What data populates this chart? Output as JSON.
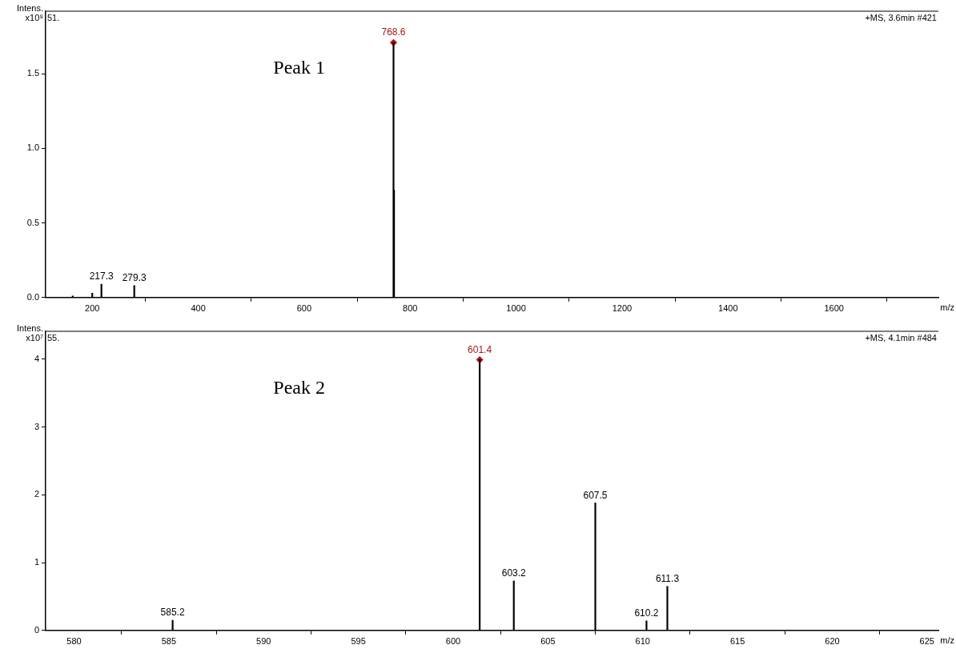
{
  "chart_data": [
    {
      "type": "bar",
      "ylabel": "Intens. x10⁹",
      "xlabel": "m/z",
      "annotations": [
        "51.",
        "+MS, 3.6min #421",
        "Peak 1",
        {
          "text": "217.3",
          "x": 217.3,
          "y": 0.09
        },
        {
          "text": "279.3",
          "x": 279.3,
          "y": 0.08
        },
        {
          "text": "768.6",
          "x": 768.6,
          "y": 1.71
        }
      ],
      "series": [
        {
          "color": "#000000",
          "x": [
            163,
            200,
            217.3,
            279.3,
            768.6,
            769.6
          ],
          "values": [
            0.01,
            0.03,
            0.09,
            0.08,
            1.71,
            0.72
          ]
        },
        {
          "type": "scatter",
          "color": "#d00000",
          "marker": "diamond",
          "x": [
            768.6
          ],
          "values": [
            1.71
          ]
        }
      ],
      "xlim": [
        112,
        1797
      ],
      "xticks": [
        200,
        400,
        600,
        800,
        1000,
        1200,
        1400,
        1600
      ],
      "ylim": [
        0,
        1.92
      ],
      "yticks": [
        {
          "value": 0,
          "label": "0.0"
        },
        {
          "value": 0.5,
          "label": "0.5"
        },
        {
          "value": 1,
          "label": "1.0"
        },
        {
          "value": 1.5,
          "label": "1.5"
        }
      ],
      "legend": false
    },
    {
      "type": "bar",
      "ylabel": "Intens. x10⁷",
      "xlabel": "m/z",
      "annotations": [
        "55.",
        "+MS, 4.1min #484",
        "Peak 2",
        {
          "text": "585.2",
          "x": 585.2,
          "y": 0.15
        },
        {
          "text": "601.4",
          "x": 601.4,
          "y": 3.99
        },
        {
          "text": "603.2",
          "x": 603.2,
          "y": 0.73
        },
        {
          "text": "607.5",
          "x": 607.5,
          "y": 1.88
        },
        {
          "text": "610.2",
          "x": 610.2,
          "y": 0.14
        },
        {
          "text": "611.3",
          "x": 611.3,
          "y": 0.65
        }
      ],
      "series": [
        {
          "color": "#000000",
          "x": [
            585.2,
            601.4,
            603.2,
            607.5,
            610.2,
            611.3
          ],
          "values": [
            0.15,
            3.99,
            0.73,
            1.88,
            0.14,
            0.65
          ]
        },
        {
          "type": "scatter",
          "color": "#d00000",
          "marker": "diamond",
          "x": [
            601.4
          ],
          "values": [
            3.99
          ]
        }
      ],
      "xlim": [
        578.5,
        625.6
      ],
      "xticks": [
        580,
        585,
        590,
        595,
        600,
        605,
        610,
        615,
        620,
        625
      ],
      "ylim": [
        0,
        4.41
      ],
      "yticks": [
        0,
        1,
        2,
        3,
        4
      ],
      "legend": false
    }
  ]
}
